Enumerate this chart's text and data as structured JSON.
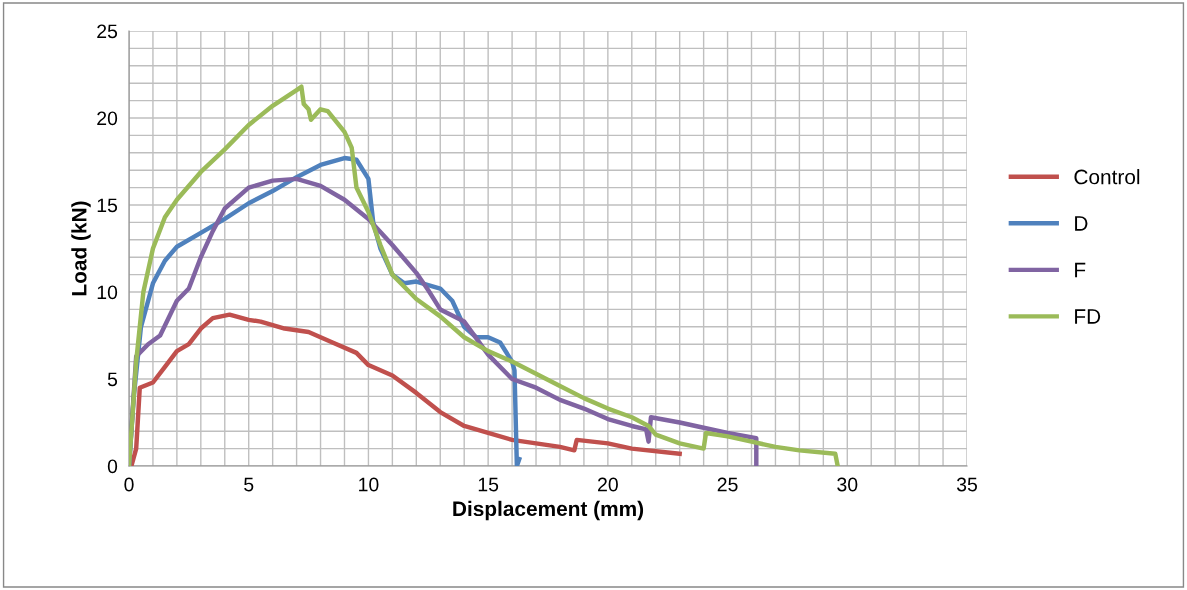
{
  "chart_data": {
    "type": "line",
    "xlabel": "Displacement (mm)",
    "ylabel": "Load (kN)",
    "xlim": [
      0,
      35
    ],
    "xticks": [
      0,
      5,
      10,
      15,
      20,
      25,
      30,
      35
    ],
    "ylim": [
      0,
      25
    ],
    "yticks": [
      0,
      5,
      10,
      15,
      20,
      25
    ],
    "grid": true,
    "legend": "right",
    "marker": "none",
    "line_style": "solid",
    "series": [
      {
        "name": "Control",
        "color": "#c0504d",
        "x": [
          0.1,
          0.3,
          0.45,
          1,
          1.5,
          2,
          2.5,
          3,
          3.5,
          4.2,
          5,
          5.5,
          6.5,
          7.5,
          8.5,
          9.5,
          10,
          11,
          12,
          13,
          14,
          15,
          16,
          17,
          18,
          18.6,
          18.7,
          20,
          21,
          23
        ],
        "values": [
          0,
          1,
          4.5,
          4.8,
          5.7,
          6.6,
          7,
          7.9,
          8.5,
          8.7,
          8.4,
          8.3,
          7.9,
          7.7,
          7.1,
          6.5,
          5.8,
          5.2,
          4.2,
          3.1,
          2.3,
          1.9,
          1.5,
          1.3,
          1.1,
          0.9,
          1.5,
          1.3,
          1.0,
          0.7
        ]
      },
      {
        "name": "D",
        "color": "#4f81bd",
        "x": [
          0,
          0.2,
          0.5,
          1,
          1.5,
          2,
          3,
          4,
          5,
          6,
          7,
          8,
          9,
          9.5,
          10,
          10.2,
          10.5,
          11,
          11.5,
          12,
          13,
          13.5,
          14,
          14.5,
          15,
          15.5,
          16,
          16.1,
          16.2,
          16.3
        ],
        "values": [
          0,
          4,
          8,
          10.5,
          11.8,
          12.6,
          13.4,
          14.2,
          15.1,
          15.8,
          16.6,
          17.3,
          17.7,
          17.6,
          16.5,
          14,
          12.5,
          11,
          10.5,
          10.6,
          10.2,
          9.5,
          8,
          7.4,
          7.4,
          7.1,
          6,
          5.5,
          0,
          0.4
        ]
      },
      {
        "name": "F",
        "color": "#8064a2",
        "x": [
          0,
          0.3,
          0.8,
          1.3,
          2,
          2.5,
          3,
          3.5,
          4,
          5,
          6,
          7,
          8,
          9,
          10,
          11,
          12,
          12.5,
          13,
          14,
          15,
          16,
          17,
          18,
          19,
          20,
          21,
          21.6,
          21.7,
          21.8,
          23,
          24,
          25,
          26.2,
          26.2
        ],
        "values": [
          0,
          6.3,
          7.0,
          7.5,
          9.5,
          10.2,
          12,
          13.5,
          14.8,
          16,
          16.4,
          16.5,
          16.1,
          15.3,
          14.2,
          12.7,
          11.1,
          10.1,
          9,
          8.3,
          6.4,
          5,
          4.5,
          3.8,
          3.3,
          2.7,
          2.3,
          2.1,
          1.4,
          2.8,
          2.5,
          2.2,
          1.9,
          1.6,
          0
        ]
      },
      {
        "name": "FD",
        "color": "#9bbb59",
        "x": [
          0,
          0.3,
          0.6,
          1,
          1.5,
          2,
          3,
          4,
          5,
          6,
          7,
          7.2,
          7.3,
          7.5,
          7.6,
          8,
          8.3,
          9,
          9.3,
          9.5,
          10,
          10.5,
          11,
          12,
          13,
          14,
          15,
          16,
          17,
          18,
          19,
          20,
          21,
          21.7,
          22,
          23,
          24,
          24.1,
          25,
          26,
          27,
          28,
          29.5,
          29.6
        ],
        "values": [
          0,
          6,
          10,
          12.5,
          14.3,
          15.3,
          16.9,
          18.2,
          19.6,
          20.7,
          21.6,
          21.8,
          20.8,
          20.5,
          19.9,
          20.5,
          20.4,
          19.2,
          18.3,
          16,
          14.6,
          12.7,
          11,
          9.6,
          8.6,
          7.4,
          6.6,
          6.0,
          5.3,
          4.6,
          3.9,
          3.3,
          2.8,
          2.3,
          1.8,
          1.3,
          1.0,
          1.9,
          1.7,
          1.4,
          1.1,
          0.9,
          0.7,
          0
        ]
      }
    ]
  }
}
